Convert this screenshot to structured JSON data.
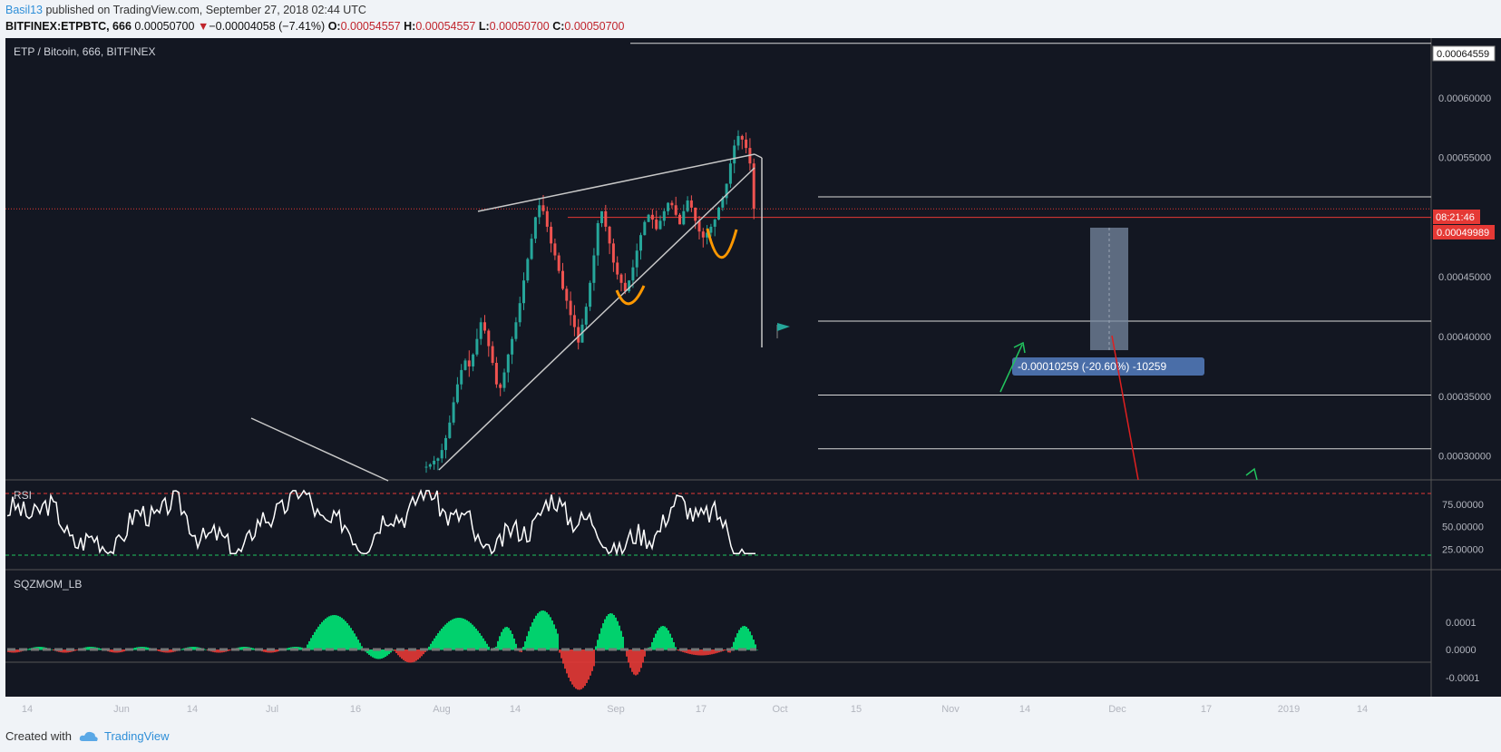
{
  "header": {
    "user": "Basil13",
    "published_text": " published on TradingView.com, September 27, 2018 02:44 UTC",
    "symbol": "BITFINEX:ETPBTC, 666",
    "last": "0.00050700",
    "change": "−0.00004058 (−7.41%)",
    "open_label": "O:",
    "open": "0.00054557",
    "high_label": "H:",
    "high": "0.00054557",
    "low_label": "L:",
    "low": "0.00050700",
    "close_label": "C:",
    "close": "0.00050700"
  },
  "footer": {
    "created_with": "Created with",
    "brand": "TradingView"
  },
  "colors": {
    "bg": "#131722",
    "up": "#26a69a",
    "down": "#ef5350",
    "grid": "#2a2e39",
    "text": "#b2b5be"
  },
  "chart_data": {
    "type": "candlestick",
    "title": "ETP / Bitcoin, 666, BITFINEX",
    "price_axis": {
      "ylim": [
        0.00028,
        0.00065
      ],
      "ticks": [
        "0.00060000",
        "0.00055000",
        "0.00045000",
        "0.00040000",
        "0.00035000",
        "0.00030000"
      ],
      "top_label": "0.00064559",
      "countdown": "08:21:46",
      "current_label": "0.00049989"
    },
    "time_axis": {
      "ticks": [
        "14",
        "Jun",
        "14",
        "Jul",
        "16",
        "Aug",
        "14",
        "Sep",
        "17",
        "Oct",
        "15",
        "Nov",
        "14",
        "Dec",
        "17",
        "2019",
        "14"
      ]
    },
    "candles_shape": [
      0.000291,
      0.000293,
      0.000296,
      0.000298,
      0.000305,
      0.000315,
      0.000328,
      0.000345,
      0.00036,
      0.000372,
      0.00038,
      0.000375,
      0.000385,
      0.000398,
      0.000412,
      0.000405,
      0.000392,
      0.000378,
      0.00036,
      0.000357,
      0.00037,
      0.000385,
      0.000398,
      0.000412,
      0.000428,
      0.000447,
      0.000465,
      0.000482,
      0.0005,
      0.00051,
      0.000505,
      0.000492,
      0.000478,
      0.000468,
      0.000455,
      0.00044,
      0.00043,
      0.000418,
      0.000408,
      0.000395,
      0.00041,
      0.000425,
      0.000445,
      0.000468,
      0.000495,
      0.000505,
      0.000492,
      0.000478,
      0.000462,
      0.000452,
      0.000445,
      0.000438,
      0.000447,
      0.000458,
      0.000472,
      0.000485,
      0.000496,
      0.000502,
      0.000498,
      0.00049,
      0.000497,
      0.000505,
      0.000512,
      0.00051,
      0.000502,
      0.000494,
      0.000505,
      0.000514,
      0.000508,
      0.000497,
      0.000488,
      0.000483,
      0.000487,
      0.000492,
      0.000498,
      0.000508,
      0.000516,
      0.000528,
      0.000545,
      0.00056,
      0.000568,
      0.000565,
      0.000558,
      0.000545,
      0.000507
    ],
    "horizontal_levels": [
      0.00064559,
      0.000517,
      0.00050699,
      0.00049989,
      0.000413,
      0.000351,
      0.000306
    ],
    "measure": {
      "label": "-0.00010259 (-20.60%) -10259"
    },
    "rsi": {
      "name": "RSI",
      "ticks": [
        "75.00000",
        "50.00000",
        "25.00000"
      ],
      "upper": 87,
      "lower": 23
    },
    "sqzmom": {
      "name": "SQZMOM_LB",
      "ticks": [
        "0.0001",
        "0.0000",
        "-0.0001"
      ]
    }
  }
}
